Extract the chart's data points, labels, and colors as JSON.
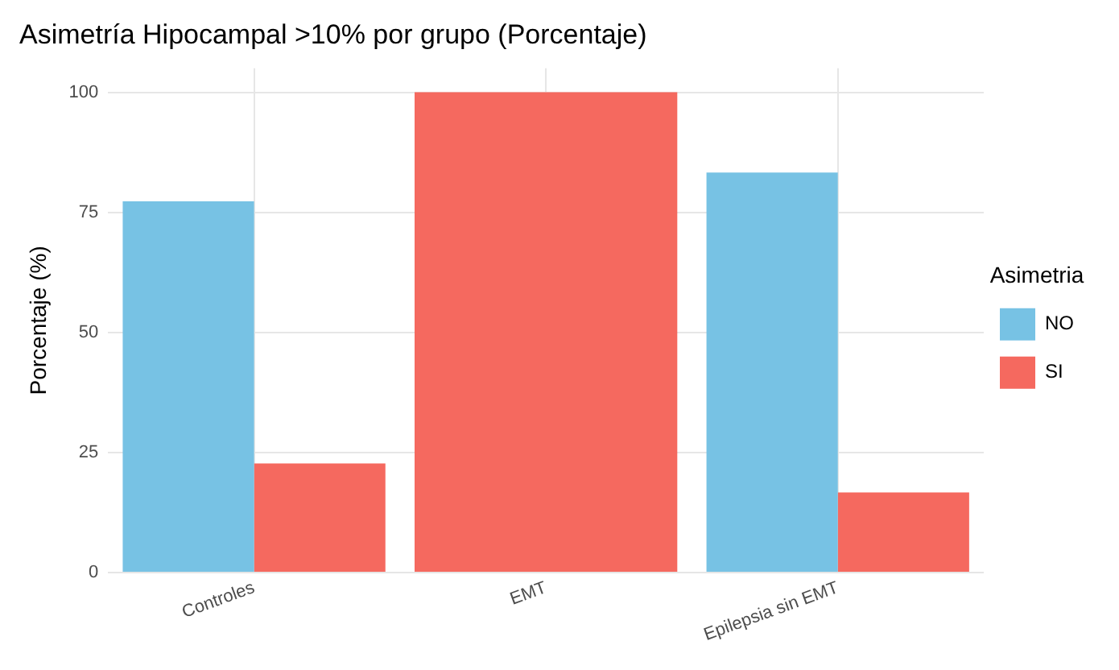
{
  "chart_data": {
    "type": "bar",
    "title": "Asimetría Hipocampal >10% por grupo (Porcentaje)",
    "ylabel": "Porcentaje (%)",
    "legend_title": "Asimetria",
    "categories": [
      "Controles",
      "EMT",
      "Epilepsia sin EMT"
    ],
    "series": [
      {
        "name": "NO",
        "color": "#77c2e4",
        "values": [
          77.3,
          null,
          83.3
        ]
      },
      {
        "name": "SI",
        "color": "#f5695f",
        "values": [
          22.7,
          100,
          16.7
        ]
      }
    ],
    "ylim": [
      0,
      105
    ],
    "yticks": [
      0,
      25,
      50,
      75,
      100
    ],
    "grid": true,
    "legend": "right"
  }
}
